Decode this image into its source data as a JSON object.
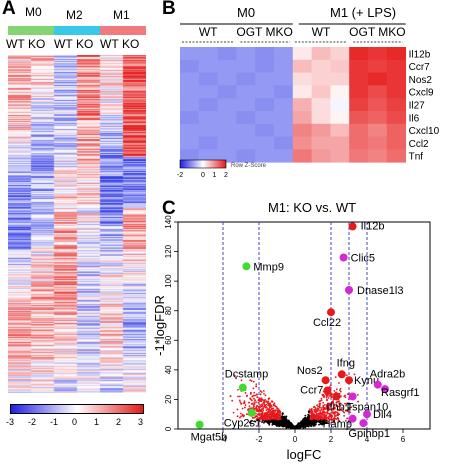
{
  "panels": {
    "A": {
      "letter": "A",
      "groups": [
        {
          "label": "M0",
          "color": "#84d473"
        },
        {
          "label": "M2",
          "color": "#37c9e6"
        },
        {
          "label": "M1",
          "color": "#f07a7e"
        }
      ],
      "genotypes": [
        "WT",
        "KO",
        "WT",
        "KO",
        "WT",
        "KO"
      ],
      "colorbar_ticks": [
        "-3",
        "-2",
        "-1",
        "0",
        "1",
        "2",
        "3"
      ],
      "colors": {
        "low": "#1f1fe6",
        "mid": "#ffffff",
        "high": "#e61a1a"
      }
    },
    "B": {
      "letter": "B",
      "group_m0": "M0",
      "group_m1": "M1 (+ LPS)",
      "sub_labels": [
        "WT",
        "OGT MKO",
        "WT",
        "OGT MKO"
      ],
      "genes": [
        "Il12b",
        "Ccr7",
        "Nos2",
        "Cxcl9",
        "Il27",
        "Il6",
        "Cxcl10",
        "Ccl2",
        "Tnf"
      ],
      "colorbar_ticks": [
        "-2",
        "0",
        "1",
        "2"
      ],
      "colorbar_label": "Row Z-Score"
    },
    "C": {
      "letter": "C"
    }
  },
  "chart_data": [
    {
      "type": "heatmap",
      "panel": "A",
      "columns": [
        "WT",
        "KO",
        "WT",
        "KO",
        "WT",
        "KO"
      ],
      "column_groups": [
        "M0",
        "M2",
        "M1"
      ],
      "color_scale": [
        -3,
        3
      ],
      "colorbar_ticks": [
        -3,
        -2,
        -1,
        0,
        1,
        2,
        3
      ]
    },
    {
      "type": "heatmap",
      "panel": "B",
      "rows": [
        "Il12b",
        "Ccr7",
        "Nos2",
        "Cxcl9",
        "Il27",
        "Il6",
        "Cxcl10",
        "Ccl2",
        "Tnf"
      ],
      "column_groups": [
        {
          "group": "M0",
          "sub": "WT",
          "n": 3
        },
        {
          "group": "M0",
          "sub": "OGT MKO",
          "n": 3
        },
        {
          "group": "M1 (+ LPS)",
          "sub": "WT",
          "n": 3
        },
        {
          "group": "M1 (+ LPS)",
          "sub": "OGT MKO",
          "n": 3
        }
      ],
      "values": [
        [
          -1.0,
          -1.0,
          -1.1,
          -1.0,
          -1.1,
          -1.0,
          0.2,
          0.6,
          0.4,
          1.9,
          1.8,
          1.9
        ],
        [
          -1.1,
          -1.0,
          -1.0,
          -1.0,
          -1.1,
          -1.0,
          0.6,
          0.4,
          0.5,
          1.8,
          1.7,
          1.8
        ],
        [
          -1.0,
          -1.1,
          -1.0,
          -1.1,
          -1.0,
          -1.0,
          0.3,
          0.4,
          0.4,
          1.8,
          1.9,
          1.8
        ],
        [
          -1.0,
          -1.0,
          -1.1,
          -1.0,
          -1.0,
          -1.1,
          0.2,
          0.5,
          0.1,
          1.8,
          1.6,
          1.8
        ],
        [
          -1.0,
          -1.1,
          -1.0,
          -1.0,
          -1.1,
          -1.0,
          0.7,
          0.3,
          -0.1,
          1.7,
          1.5,
          1.7
        ],
        [
          -1.1,
          -1.0,
          -1.0,
          -1.1,
          -1.0,
          -1.0,
          0.8,
          0.3,
          0.1,
          1.5,
          1.4,
          1.6
        ],
        [
          -1.0,
          -1.0,
          -1.0,
          -1.0,
          -1.1,
          -1.0,
          1.1,
          0.9,
          0.6,
          1.3,
          1.1,
          1.4
        ],
        [
          -1.0,
          -1.1,
          -1.0,
          -1.0,
          -1.0,
          -1.1,
          1.0,
          0.8,
          0.8,
          1.3,
          1.2,
          1.4
        ],
        [
          -1.1,
          -1.0,
          -1.0,
          -1.1,
          -1.0,
          -1.0,
          1.2,
          0.9,
          0.8,
          1.2,
          1.1,
          1.3
        ]
      ],
      "color_scale": [
        -2,
        2
      ],
      "colorbar_ticks": [
        -2,
        0,
        1,
        2
      ],
      "colorbar_label": "Row Z-Score"
    },
    {
      "type": "scatter",
      "panel": "C",
      "title": "M1: KO vs. WT",
      "xlabel": "logFC",
      "ylabel": "-1*logFDR",
      "xlim": [
        -6.5,
        7.5
      ],
      "ylim": [
        0,
        140
      ],
      "xticks": [
        -4,
        -2,
        0,
        2,
        4,
        6
      ],
      "yticks": [
        0,
        20,
        40,
        60,
        80,
        100,
        120,
        140
      ],
      "threshold_lines_x": [
        -4,
        -2,
        2,
        3,
        4
      ],
      "labeled_points": [
        {
          "label": "Il12b",
          "x": 3.2,
          "y": 137,
          "color": "#e8191b"
        },
        {
          "label": "Clic5",
          "x": 2.7,
          "y": 116,
          "color": "#d626d6"
        },
        {
          "label": "Mmp9",
          "x": -2.7,
          "y": 110,
          "color": "#3fdc2e"
        },
        {
          "label": "Dnase1l3",
          "x": 3.0,
          "y": 94,
          "color": "#d626d6"
        },
        {
          "label": "Ccl22",
          "x": 2.0,
          "y": 79,
          "color": "#e8191b"
        },
        {
          "label": "Ifng",
          "x": 2.6,
          "y": 37,
          "color": "#e8191b"
        },
        {
          "label": "Nos2",
          "x": 1.7,
          "y": 33,
          "color": "#e8191b"
        },
        {
          "label": "Kynu",
          "x": 3.0,
          "y": 33,
          "color": "#e8191b"
        },
        {
          "label": "Adra2b",
          "x": 4.6,
          "y": 30,
          "color": "#d626d6"
        },
        {
          "label": "Rasgrf1",
          "x": 5.0,
          "y": 27,
          "color": "#d626d6"
        },
        {
          "label": "Ccr7",
          "x": 1.8,
          "y": 26,
          "color": "#e8191b"
        },
        {
          "label": "Dcstamp",
          "x": -2.9,
          "y": 28,
          "color": "#3fdc2e"
        },
        {
          "label": "Ifnb1",
          "x": 2.3,
          "y": 22,
          "color": "#e8191b"
        },
        {
          "label": "Tspan10",
          "x": 3.2,
          "y": 22,
          "color": "#d626d6"
        },
        {
          "label": "Cyp2s1",
          "x": -2.4,
          "y": 11,
          "color": "#3fdc2e"
        },
        {
          "label": "Dll4",
          "x": 4.0,
          "y": 10,
          "color": "#d626d6"
        },
        {
          "label": "Hamp",
          "x": 3.2,
          "y": 7,
          "color": "#d626d6"
        },
        {
          "label": "Gpihbp1",
          "x": 3.8,
          "y": 4,
          "color": "#d626d6"
        },
        {
          "label": "Mgat5b",
          "x": -5.3,
          "y": 3,
          "color": "#3fdc2e"
        }
      ],
      "background_points": {
        "not_significant_color": "#000000",
        "significant_color": "#e8191b"
      }
    }
  ]
}
